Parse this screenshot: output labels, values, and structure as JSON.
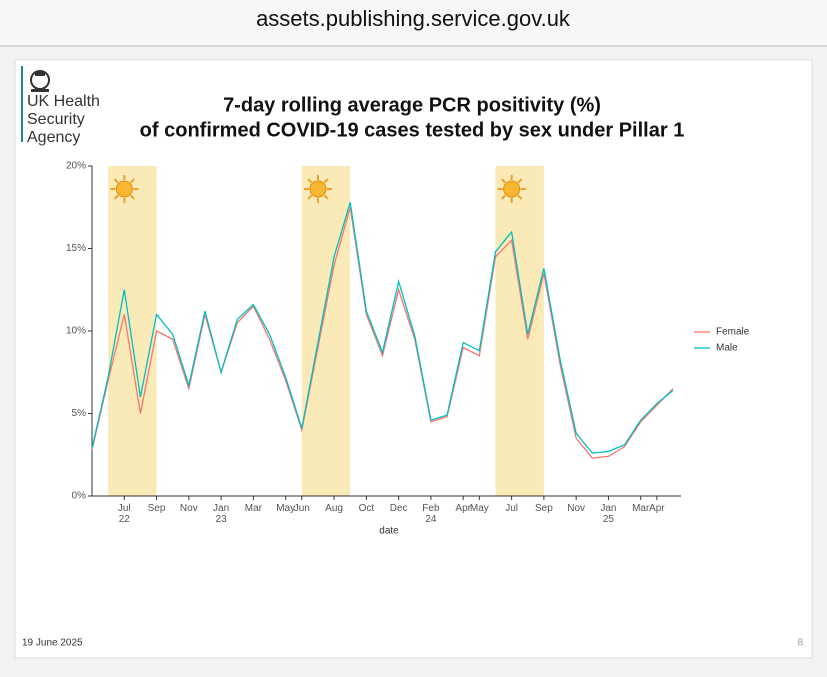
{
  "browser": {
    "url": "assets.publishing.service.gov.uk"
  },
  "slide": {
    "logo_lines": [
      "UK Health",
      "Security",
      "Agency"
    ],
    "date": "19 June 2025",
    "page_number": "8"
  },
  "chart_data": {
    "type": "line",
    "title": [
      "7-day rolling average PCR positivity (%)",
      "of confirmed COVID-19 cases tested by sex under Pillar 1"
    ],
    "x_label": "date",
    "x": [
      "2022-05",
      "2022-06",
      "2022-07",
      "2022-08",
      "2022-09",
      "2022-10",
      "2022-11",
      "2022-12",
      "2023-01",
      "2023-02",
      "2023-03",
      "2023-04",
      "2023-05",
      "2023-06",
      "2023-07",
      "2023-08",
      "2023-09",
      "2023-10",
      "2023-11",
      "2023-12",
      "2024-01",
      "2024-02",
      "2024-03",
      "2024-04",
      "2024-05",
      "2024-06",
      "2024-07",
      "2024-08",
      "2024-09",
      "2024-10",
      "2024-11",
      "2024-12",
      "2025-01",
      "2025-02",
      "2025-03",
      "2025-04",
      "2025-05"
    ],
    "series": [
      {
        "name": "Female",
        "color": "#F8766D",
        "values": [
          2.8,
          7,
          11,
          5,
          10,
          9.5,
          6.5,
          11,
          7.5,
          10.5,
          11.5,
          9.5,
          7,
          4,
          9,
          14,
          17.5,
          11,
          8.5,
          12.5,
          9.5,
          4.5,
          4.8,
          9,
          8.5,
          14.5,
          15.5,
          9.5,
          13.5,
          8,
          3.5,
          2.3,
          2.4,
          3,
          4.5,
          5.5,
          6.5
        ]
      },
      {
        "name": "Male",
        "color": "#00BFC4",
        "values": [
          2.9,
          7.2,
          12.5,
          6,
          11,
          9.8,
          6.7,
          11.2,
          7.5,
          10.7,
          11.6,
          9.8,
          7.2,
          4.1,
          9.3,
          14.5,
          17.8,
          11.2,
          8.7,
          13,
          9.7,
          4.6,
          4.9,
          9.3,
          8.8,
          14.8,
          16,
          9.8,
          13.8,
          8.3,
          3.8,
          2.6,
          2.7,
          3.1,
          4.6,
          5.6,
          6.4
        ]
      }
    ],
    "highlight_periods": [
      {
        "start": "2022-06",
        "end": "2022-09"
      },
      {
        "start": "2023-06",
        "end": "2023-09"
      },
      {
        "start": "2024-06",
        "end": "2024-09"
      }
    ],
    "highlight_color": "#FAEAB8",
    "xlim": [
      "2022-05",
      "2025-05"
    ],
    "xticks": [
      {
        "value": "2022-07",
        "label": "Jul 22"
      },
      {
        "value": "2022-09",
        "label": "Sep"
      },
      {
        "value": "2022-11",
        "label": "Nov"
      },
      {
        "value": "2023-01",
        "label": "Jan 23"
      },
      {
        "value": "2023-03",
        "label": "Mar"
      },
      {
        "value": "2023-05",
        "label": "May"
      },
      {
        "value": "2023-06",
        "label": "Jun"
      },
      {
        "value": "2023-08",
        "label": "Aug"
      },
      {
        "value": "2023-10",
        "label": "Oct"
      },
      {
        "value": "2023-12",
        "label": "Dec"
      },
      {
        "value": "2024-02",
        "label": "Feb 24"
      },
      {
        "value": "2024-04",
        "label": "Apr"
      },
      {
        "value": "2024-05",
        "label": "May"
      },
      {
        "value": "2024-07",
        "label": "Jul"
      },
      {
        "value": "2024-09",
        "label": "Sep"
      },
      {
        "value": "2024-11",
        "label": "Nov"
      },
      {
        "value": "2025-01",
        "label": "Jan 25"
      },
      {
        "value": "2025-03",
        "label": "Mar"
      },
      {
        "value": "2025-04",
        "label": "Apr"
      }
    ],
    "ylim": [
      0,
      20
    ],
    "yticks": [
      {
        "value": 0,
        "label": "0%"
      },
      {
        "value": 5,
        "label": "5%"
      },
      {
        "value": 10,
        "label": "10%"
      },
      {
        "value": 15,
        "label": "15%"
      },
      {
        "value": 20,
        "label": "20%"
      }
    ],
    "grid": false,
    "legend": "right"
  }
}
